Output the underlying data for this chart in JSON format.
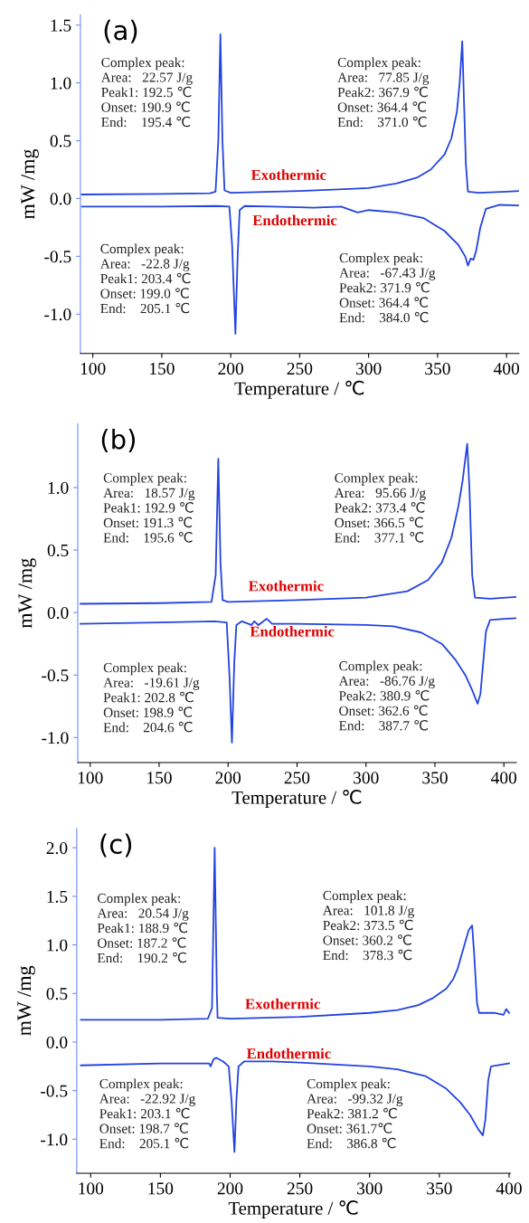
{
  "chart_data": [
    {
      "type": "line",
      "title": "(a)",
      "xlabel": "Temperature / ℃",
      "ylabel": "mW /mg",
      "xlim": [
        91,
        409
      ],
      "ylim": [
        -1.34,
        1.59
      ],
      "xticks": [
        100,
        150,
        200,
        250,
        300,
        350,
        400
      ],
      "yticks": [
        {
          "value": -1,
          "label": "-1.0"
        },
        -0.5,
        {
          "value": 0,
          "label": "0.0"
        },
        0.5,
        {
          "value": 1,
          "label": "1.0"
        },
        1.5
      ],
      "marker": "none",
      "line_style": "solid",
      "annotations": [
        "Exothermic",
        "Endothermic",
        "Complex peak:\nArea:   22.57 J/g\nPeak1: 192.5 ℃\nOnset: 190.9 ℃\nEnd:    195.4 ℃",
        "Complex peak:\nArea:   77.85 J/g\nPeak2: 367.9 ℃\nOnset: 364.4 ℃\nEnd:    371.0 ℃",
        "Complex peak:\nArea:   -22.8 J/g\nPeak1: 203.4 ℃\nOnset: 199.0 ℃\nEnd:    205.1 ℃",
        "Complex peak:\nArea:   -67.43 J/g\nPeak2: 371.9 ℃\nOnset: 364.4 ℃\nEnd:    384.0 ℃"
      ],
      "series": [
        {
          "color": "#2343e0",
          "x": [
            92,
            150,
            185,
            189,
            191,
            192.5,
            194,
            195.5,
            200,
            250,
            290,
            300,
            320,
            335,
            345,
            355,
            360,
            364,
            366,
            367.9,
            369,
            370.5,
            372,
            380,
            400,
            409
          ],
          "values": [
            0.035,
            0.04,
            0.045,
            0.06,
            0.5,
            1.42,
            0.5,
            0.07,
            0.05,
            0.065,
            0.085,
            0.09,
            0.13,
            0.18,
            0.25,
            0.38,
            0.52,
            0.75,
            1.0,
            1.36,
            0.9,
            0.3,
            0.06,
            0.05,
            0.06,
            0.065
          ]
        },
        {
          "color": "#2343e0",
          "x": [
            92,
            150,
            190,
            199,
            201,
            203.4,
            205,
            206.5,
            210,
            230,
            250,
            260,
            280,
            292,
            300,
            320,
            340,
            355,
            365,
            370,
            372,
            374,
            376,
            378,
            381,
            385,
            395,
            409
          ],
          "values": [
            -0.07,
            -0.07,
            -0.065,
            -0.07,
            -0.4,
            -1.17,
            -0.5,
            -0.1,
            -0.065,
            -0.07,
            -0.075,
            -0.08,
            -0.07,
            -0.12,
            -0.1,
            -0.12,
            -0.17,
            -0.28,
            -0.4,
            -0.5,
            -0.58,
            -0.52,
            -0.53,
            -0.45,
            -0.25,
            -0.09,
            -0.055,
            -0.06
          ]
        }
      ]
    },
    {
      "type": "line",
      "title": "(b)",
      "xlabel": "Temperature / ℃",
      "ylabel": "mW /mg",
      "xlim": [
        91,
        409
      ],
      "ylim": [
        -1.2,
        1.51
      ],
      "xticks": [
        100,
        150,
        200,
        250,
        300,
        350,
        400
      ],
      "yticks": [
        {
          "value": -1,
          "label": "-1.0"
        },
        -0.5,
        {
          "value": 0,
          "label": "0.0"
        },
        0.5,
        {
          "value": 1,
          "label": "1.0"
        }
      ],
      "marker": "none",
      "line_style": "solid",
      "annotations": [
        "Exothermic",
        "Endothermic",
        "Complex peak:\nArea:   18.57 J/g\nPeak1: 192.9 ℃\nOnset: 191.3 ℃\nEnd:    195.6 ℃",
        "Complex peak:\nArea:   95.66 J/g\nPeak2: 373.4 ℃\nOnset: 366.5 ℃\nEnd:    377.1 ℃",
        "Complex peak:\nArea:   -19.61 J/g\nPeak1: 202.8 ℃\nOnset: 198.9 ℃\nEnd:    204.6 ℃",
        "Complex peak:\nArea:   -86.76 J/g\nPeak2: 380.9 ℃\nOnset: 362.6 ℃\nEnd:    387.7 ℃"
      ],
      "series": [
        {
          "color": "#2343e0",
          "x": [
            93,
            150,
            188,
            191,
            192.9,
            194.5,
            196,
            200,
            250,
            300,
            330,
            345,
            355,
            362,
            367,
            370,
            373.4,
            375,
            377,
            379,
            390,
            409
          ],
          "values": [
            0.07,
            0.075,
            0.085,
            0.3,
            1.23,
            0.4,
            0.1,
            0.085,
            0.1,
            0.12,
            0.17,
            0.26,
            0.4,
            0.6,
            0.85,
            1.05,
            1.35,
            1.0,
            0.3,
            0.12,
            0.11,
            0.125
          ]
        },
        {
          "color": "#2343e0",
          "x": [
            93,
            150,
            190,
            199,
            201,
            202.8,
            204.5,
            206,
            210,
            217,
            219,
            222,
            228,
            232,
            250,
            300,
            320,
            340,
            355,
            365,
            372,
            377,
            380.9,
            383,
            385,
            387,
            390,
            400,
            409
          ],
          "values": [
            -0.09,
            -0.08,
            -0.07,
            -0.08,
            -0.5,
            -1.04,
            -0.4,
            -0.1,
            -0.07,
            -0.1,
            -0.07,
            -0.1,
            -0.05,
            -0.09,
            -0.09,
            -0.1,
            -0.11,
            -0.16,
            -0.25,
            -0.38,
            -0.5,
            -0.62,
            -0.73,
            -0.65,
            -0.4,
            -0.15,
            -0.06,
            -0.05,
            -0.045
          ]
        }
      ]
    },
    {
      "type": "line",
      "title": "(c)",
      "xlabel": "Temperature / ℃",
      "ylabel": "mW /mg",
      "xlim": [
        90,
        401
      ],
      "ylim": [
        -1.35,
        2.2
      ],
      "xticks": [
        100,
        150,
        200,
        250,
        300,
        350,
        400
      ],
      "yticks": [
        {
          "value": -1,
          "label": "-1.0"
        },
        -0.5,
        {
          "value": 0,
          "label": "0.0"
        },
        0.5,
        {
          "value": 1,
          "label": "1.0"
        },
        1.5,
        {
          "value": 2,
          "label": "2.0"
        }
      ],
      "marker": "none",
      "line_style": "solid",
      "annotations": [
        "Exothermic",
        "Endothermic",
        "Complex peak:\nArea:   20.54 J/g\nPeak1: 188.9 ℃\nOnset: 187.2 ℃\nEnd:    190.2 ℃",
        "Complex peak:\nArea:   101.8 J/g\nPeak2: 373.5 ℃\nOnset: 360.2 ℃\nEnd:    378.3 ℃",
        "Complex peak:\nArea:   -22.92 J/g\nPeak1: 203.1 ℃\nOnset: 198.7 ℃\nEnd:    205.1 ℃",
        "Complex peak:\nArea:   -99.32 J/g\nPeak2: 381.2 ℃\nOnset: 361.7℃\nEnd:    386.8 ℃"
      ],
      "series": [
        {
          "color": "#2343e0",
          "x": [
            93,
            150,
            184,
            187,
            188.9,
            190.5,
            191,
            200,
            250,
            300,
            320,
            335,
            345,
            350,
            355,
            360,
            363,
            368,
            371,
            373.5,
            375,
            377,
            378.5,
            390,
            396,
            398,
            400
          ],
          "values": [
            0.23,
            0.23,
            0.24,
            0.35,
            2.0,
            0.5,
            0.25,
            0.24,
            0.26,
            0.3,
            0.33,
            0.38,
            0.45,
            0.5,
            0.55,
            0.65,
            0.75,
            1.0,
            1.15,
            1.2,
            0.9,
            0.4,
            0.3,
            0.3,
            0.28,
            0.34,
            0.3
          ]
        },
        {
          "color": "#2343e0",
          "x": [
            93,
            150,
            185,
            186,
            188,
            190,
            195,
            199,
            201,
            203.1,
            204.5,
            206,
            210,
            230,
            250,
            300,
            320,
            340,
            355,
            365,
            372,
            378,
            381.2,
            383,
            385,
            387,
            400
          ],
          "values": [
            -0.24,
            -0.22,
            -0.22,
            -0.25,
            -0.18,
            -0.16,
            -0.2,
            -0.25,
            -0.6,
            -1.13,
            -0.6,
            -0.25,
            -0.2,
            -0.2,
            -0.21,
            -0.25,
            -0.28,
            -0.35,
            -0.48,
            -0.62,
            -0.75,
            -0.9,
            -0.96,
            -0.8,
            -0.4,
            -0.25,
            -0.22
          ]
        }
      ]
    }
  ]
}
